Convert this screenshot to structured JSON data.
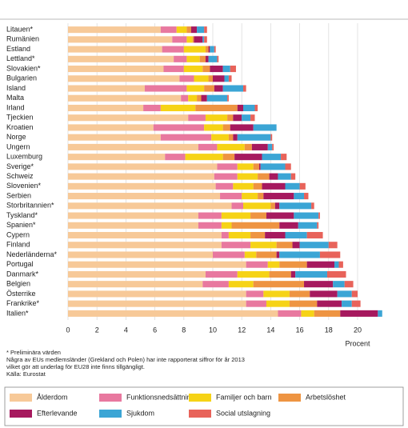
{
  "chart_data": {
    "type": "stacked-barh",
    "xlabel": "Procent",
    "categories": [
      "Litauen*",
      "Rumänien",
      "Estland",
      "Lettland*",
      "Slovakien*",
      "Bulgarien",
      "Island",
      "Malta",
      "Irland",
      "Tjeckien",
      "Kroatien",
      "Norge",
      "Ungern",
      "Luxemburg",
      "Sverige*",
      "Schweiz",
      "Slovenien*",
      "Serbien",
      "Storbritannien*",
      "Tyskland*",
      "Spanien*",
      "Cypern",
      "Finland",
      "Nederländerna*",
      "Portugal",
      "Danmark*",
      "Belgien",
      "Österrike",
      "Frankrike*",
      "Italien*"
    ],
    "series": [
      {
        "name": "Ålderdom",
        "color": "#f7c998",
        "values": [
          6.4,
          7.2,
          6.5,
          7.3,
          6.6,
          7.7,
          5.3,
          7.8,
          5.2,
          8.3,
          5.9,
          6.4,
          9.0,
          6.7,
          10.3,
          10.1,
          10.2,
          10.5,
          11.3,
          9.0,
          9.0,
          10.6,
          10.6,
          10.0,
          12.3,
          9.5,
          9.3,
          12.3,
          12.3,
          14.5
        ]
      },
      {
        "name": "Funktionsnedsättning",
        "color": "#e8789f",
        "values": [
          1.1,
          1.0,
          1.5,
          0.9,
          1.4,
          1.0,
          2.9,
          0.5,
          1.2,
          1.2,
          3.5,
          3.5,
          1.3,
          1.4,
          1.4,
          1.6,
          1.2,
          1.5,
          0.8,
          1.6,
          1.6,
          0.5,
          2.0,
          2.2,
          1.5,
          2.2,
          1.8,
          1.2,
          1.4,
          1.6
        ]
      },
      {
        "name": "Familjer och barn",
        "color": "#f6d316",
        "values": [
          0.7,
          0.4,
          1.5,
          0.9,
          1.3,
          1.0,
          1.2,
          0.6,
          2.4,
          1.5,
          1.3,
          1.2,
          1.9,
          2.6,
          1.1,
          1.4,
          1.4,
          1.1,
          1.9,
          2.0,
          0.7,
          1.5,
          1.8,
          0.8,
          0.8,
          2.2,
          1.7,
          1.8,
          1.6,
          0.9
        ]
      },
      {
        "name": "Arbetslöshet",
        "color": "#ee9442",
        "values": [
          0.3,
          0.1,
          0.2,
          0.4,
          0.5,
          0.3,
          0.7,
          0.3,
          2.9,
          0.4,
          0.5,
          0.3,
          0.5,
          0.8,
          0.4,
          0.8,
          0.6,
          0.4,
          0.3,
          1.1,
          3.3,
          1.0,
          1.1,
          1.4,
          1.9,
          1.5,
          3.5,
          1.4,
          1.9,
          1.8
        ]
      },
      {
        "name": "Efterlevande",
        "color": "#a6195e",
        "values": [
          0.4,
          0.6,
          0.1,
          0.2,
          0.9,
          0.8,
          0.6,
          0.4,
          0.4,
          0.6,
          1.6,
          0.3,
          1.1,
          1.9,
          0.1,
          0.6,
          1.6,
          2.1,
          0.3,
          1.9,
          1.3,
          1.4,
          0.5,
          0.2,
          1.9,
          0.3,
          2.0,
          1.9,
          1.7,
          2.6
        ]
      },
      {
        "name": "Sjukdom",
        "color": "#3ba5d5",
        "values": [
          0.5,
          0.1,
          0.3,
          0.6,
          0.5,
          0.3,
          1.4,
          1.4,
          0.8,
          0.6,
          1.6,
          2.3,
          0.3,
          1.3,
          1.7,
          0.9,
          1.0,
          0.7,
          2.2,
          1.7,
          1.3,
          1.5,
          2.0,
          2.8,
          0.3,
          2.2,
          0.8,
          1.0,
          0.7,
          0.3
        ]
      },
      {
        "name": "Social utslagning",
        "color": "#e8635a",
        "values": [
          0.2,
          0.2,
          0.1,
          0.1,
          0.4,
          0.2,
          0.2,
          0.1,
          0.2,
          0.3,
          0,
          0.1,
          0.1,
          0.4,
          0.4,
          0.3,
          0.4,
          0.3,
          0.2,
          0.1,
          0.1,
          1.1,
          0.6,
          1.4,
          0.3,
          1.3,
          0.6,
          0.4,
          0.6,
          0
        ]
      }
    ],
    "xlim": [
      0,
      22
    ],
    "xticks": [
      0,
      2,
      4,
      6,
      8,
      10,
      12,
      14,
      16,
      18,
      20
    ],
    "grid": true,
    "notes": [
      "* Preliminära värden",
      "Några av EUs medlemsländer (Grekland och Polen) har inte rapporterat siffror för år 2013",
      "vilket gör att underlag för EU28 inte finns tillgängligt.",
      "Källa: Eurostat"
    ]
  }
}
